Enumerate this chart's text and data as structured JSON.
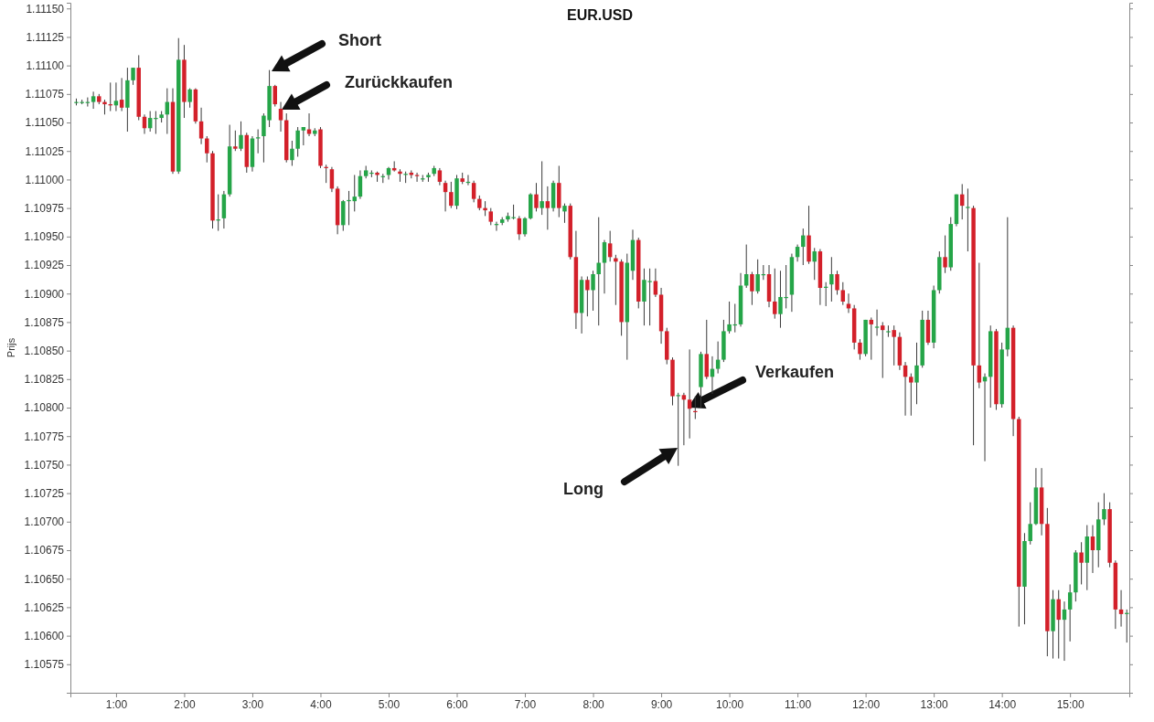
{
  "chart_data": {
    "type": "candlestick",
    "title": "EUR.USD",
    "ylabel": "Prijs",
    "xlim": [
      0.33,
      15.87
    ],
    "ylim": [
      1.1055,
      1.11155
    ],
    "xticks": [
      {
        "value": 1,
        "label": "1:00"
      },
      {
        "value": 2,
        "label": "2:00"
      },
      {
        "value": 3,
        "label": "3:00"
      },
      {
        "value": 4,
        "label": "4:00"
      },
      {
        "value": 5,
        "label": "5:00"
      },
      {
        "value": 6,
        "label": "6:00"
      },
      {
        "value": 7,
        "label": "7:00"
      },
      {
        "value": 8,
        "label": "8:00"
      },
      {
        "value": 9,
        "label": "9:00"
      },
      {
        "value": 10,
        "label": "10:00"
      },
      {
        "value": 11,
        "label": "11:00"
      },
      {
        "value": 12,
        "label": "12:00"
      },
      {
        "value": 13,
        "label": "13:00"
      },
      {
        "value": 14,
        "label": "14:00"
      },
      {
        "value": 15,
        "label": "15:00"
      }
    ],
    "yticks": [
      {
        "value": 1.10575,
        "label": "1.10575"
      },
      {
        "value": 1.106,
        "label": "1.10600"
      },
      {
        "value": 1.10625,
        "label": "1.10625"
      },
      {
        "value": 1.1065,
        "label": "1.10650"
      },
      {
        "value": 1.10675,
        "label": "1.10675"
      },
      {
        "value": 1.107,
        "label": "1.10700"
      },
      {
        "value": 1.10725,
        "label": "1.10725"
      },
      {
        "value": 1.1075,
        "label": "1.10750"
      },
      {
        "value": 1.10775,
        "label": "1.10775"
      },
      {
        "value": 1.108,
        "label": "1.10800"
      },
      {
        "value": 1.10825,
        "label": "1.10825"
      },
      {
        "value": 1.1085,
        "label": "1.10850"
      },
      {
        "value": 1.10875,
        "label": "1.10875"
      },
      {
        "value": 1.109,
        "label": "1.10900"
      },
      {
        "value": 1.10925,
        "label": "1.10925"
      },
      {
        "value": 1.1095,
        "label": "1.10950"
      },
      {
        "value": 1.10975,
        "label": "1.10975"
      },
      {
        "value": 1.11,
        "label": "1.11000"
      },
      {
        "value": 1.11025,
        "label": "1.11025"
      },
      {
        "value": 1.1105,
        "label": "1.11050"
      },
      {
        "value": 1.11075,
        "label": "1.11075"
      },
      {
        "value": 1.111,
        "label": "1.11100"
      },
      {
        "value": 1.11125,
        "label": "1.11125"
      },
      {
        "value": 1.1115,
        "label": "1.11150"
      }
    ],
    "grid": false,
    "annotations": [
      "Short",
      "Zurückkaufen",
      "Verkaufen",
      "Long"
    ],
    "x": [
      0.417,
      0.5,
      0.583,
      0.667,
      0.75,
      0.833,
      0.917,
      1.0,
      1.083,
      1.167,
      1.25,
      1.333,
      1.417,
      1.5,
      1.583,
      1.667,
      1.75,
      1.833,
      1.917,
      2.0,
      2.083,
      2.167,
      2.25,
      2.333,
      2.417,
      2.5,
      2.583,
      2.667,
      2.75,
      2.833,
      2.917,
      3.0,
      3.083,
      3.167,
      3.25,
      3.333,
      3.417,
      3.5,
      3.583,
      3.667,
      3.75,
      3.833,
      3.917,
      4.0,
      4.083,
      4.167,
      4.25,
      4.333,
      4.417,
      4.5,
      4.583,
      4.667,
      4.75,
      4.833,
      4.917,
      5.0,
      5.083,
      5.167,
      5.25,
      5.333,
      5.417,
      5.5,
      5.583,
      5.667,
      5.75,
      5.833,
      5.917,
      6.0,
      6.083,
      6.167,
      6.25,
      6.333,
      6.417,
      6.5,
      6.583,
      6.667,
      6.75,
      6.833,
      6.917,
      7.0,
      7.083,
      7.167,
      7.25,
      7.333,
      7.417,
      7.5,
      7.583,
      7.667,
      7.75,
      7.833,
      7.917,
      8.0,
      8.083,
      8.167,
      8.25,
      8.333,
      8.417,
      8.5,
      8.583,
      8.667,
      8.75,
      8.833,
      8.917,
      9.0,
      9.083,
      9.167,
      9.25,
      9.333,
      9.417,
      9.5,
      9.583,
      9.667,
      9.75,
      9.833,
      9.917,
      10.0,
      10.083,
      10.167,
      10.25,
      10.333,
      10.417,
      10.5,
      10.583,
      10.667,
      10.75,
      10.833,
      10.917,
      11.0,
      11.083,
      11.167,
      11.25,
      11.333,
      11.417,
      11.5,
      11.583,
      11.667,
      11.75,
      11.833,
      11.917,
      12.0,
      12.083,
      12.167,
      12.25,
      12.333,
      12.417,
      12.5,
      12.583,
      12.667,
      12.75,
      12.833,
      12.917,
      13.0,
      13.083,
      13.167,
      13.25,
      13.333,
      13.417,
      13.5,
      13.583,
      13.667,
      13.75,
      13.833,
      13.917,
      14.0,
      14.083,
      14.167,
      14.25,
      14.333,
      14.417,
      14.5,
      14.583,
      14.667,
      14.75,
      14.833,
      14.917,
      15.0,
      15.083,
      15.167,
      15.25,
      15.333,
      15.417,
      15.5,
      15.583,
      15.667,
      15.75,
      15.833
    ],
    "ohlc": [
      [
        1.11068,
        1.11071,
        1.11065,
        1.11068
      ],
      [
        1.11068,
        1.1107,
        1.11066,
        1.11068
      ],
      [
        1.11068,
        1.11072,
        1.11064,
        1.11068
      ],
      [
        1.11068,
        1.11077,
        1.11062,
        1.11073
      ],
      [
        1.11073,
        1.11075,
        1.11066,
        1.11068
      ],
      [
        1.11068,
        1.1107,
        1.11057,
        1.11066
      ],
      [
        1.11066,
        1.11085,
        1.1106,
        1.11065
      ],
      [
        1.11065,
        1.11085,
        1.1106,
        1.11069
      ],
      [
        1.1107,
        1.11089,
        1.1106,
        1.11063
      ],
      [
        1.11063,
        1.11098,
        1.11042,
        1.11087
      ],
      [
        1.11087,
        1.11098,
        1.11083,
        1.11098
      ],
      [
        1.11098,
        1.11109,
        1.11052,
        1.11055
      ],
      [
        1.11055,
        1.11057,
        1.1104,
        1.11045
      ],
      [
        1.11045,
        1.1106,
        1.11042,
        1.11054
      ],
      [
        1.11054,
        1.1106,
        1.1104,
        1.11054
      ],
      [
        1.11054,
        1.1106,
        1.1105,
        1.11057
      ],
      [
        1.11057,
        1.1108,
        1.1104,
        1.11068
      ],
      [
        1.11068,
        1.1108,
        1.11005,
        1.11007
      ],
      [
        1.11007,
        1.11124,
        1.11005,
        1.11105
      ],
      [
        1.11105,
        1.11118,
        1.11054,
        1.11068
      ],
      [
        1.11068,
        1.1108,
        1.11063,
        1.11079
      ],
      [
        1.11079,
        1.1108,
        1.11049,
        1.11051
      ],
      [
        1.11051,
        1.11063,
        1.11031,
        1.11036
      ],
      [
        1.11036,
        1.11038,
        1.11015,
        1.11023
      ],
      [
        1.11023,
        1.11025,
        1.10957,
        1.10964
      ],
      [
        1.10964,
        1.10987,
        1.10955,
        1.10965
      ],
      [
        1.10966,
        1.1099,
        1.10957,
        1.10987
      ],
      [
        1.10987,
        1.11048,
        1.10985,
        1.11029
      ],
      [
        1.11029,
        1.11043,
        1.11025,
        1.11027
      ],
      [
        1.11027,
        1.11051,
        1.11025,
        1.11039
      ],
      [
        1.11039,
        1.11041,
        1.11006,
        1.11011
      ],
      [
        1.11011,
        1.11038,
        1.11007,
        1.11036
      ],
      [
        1.11036,
        1.11044,
        1.11023,
        1.11037
      ],
      [
        1.11038,
        1.11058,
        1.11015,
        1.11056
      ],
      [
        1.11052,
        1.11096,
        1.11046,
        1.11082
      ],
      [
        1.11082,
        1.11083,
        1.11064,
        1.11066
      ],
      [
        1.11062,
        1.11068,
        1.11042,
        1.11052
      ],
      [
        1.11052,
        1.11058,
        1.11015,
        1.11017
      ],
      [
        1.11017,
        1.11034,
        1.11012,
        1.11027
      ],
      [
        1.11027,
        1.11046,
        1.1102,
        1.11043
      ],
      [
        1.11043,
        1.11046,
        1.1103,
        1.11046
      ],
      [
        1.11044,
        1.11058,
        1.11038,
        1.1104
      ],
      [
        1.1104,
        1.11045,
        1.11038,
        1.11043
      ],
      [
        1.11044,
        1.11046,
        1.1101,
        1.11012
      ],
      [
        1.11011,
        1.11013,
        1.10997,
        1.1101
      ],
      [
        1.11009,
        1.11011,
        1.10989,
        1.10992
      ],
      [
        1.10992,
        1.10994,
        1.10952,
        1.1096
      ],
      [
        1.1096,
        1.10982,
        1.10955,
        1.10981
      ],
      [
        1.10981,
        1.1099,
        1.1096,
        1.10982
      ],
      [
        1.10981,
        1.11004,
        1.10972,
        1.10985
      ],
      [
        1.10985,
        1.11008,
        1.10983,
        1.11003
      ],
      [
        1.11003,
        1.11012,
        1.11001,
        1.11008
      ],
      [
        1.11006,
        1.11008,
        1.11002,
        1.11006
      ],
      [
        1.11006,
        1.11007,
        1.10998,
        1.11004
      ],
      [
        1.11003,
        1.11005,
        1.10997,
        1.11003
      ],
      [
        1.11004,
        1.11011,
        1.11,
        1.1101
      ],
      [
        1.1101,
        1.11016,
        1.11007,
        1.11008
      ],
      [
        1.11007,
        1.11009,
        1.10998,
        1.11005
      ],
      [
        1.11005,
        1.11007,
        1.10997,
        1.11005
      ],
      [
        1.11006,
        1.11008,
        1.11001,
        1.11004
      ],
      [
        1.11004,
        1.11006,
        1.10998,
        1.11003
      ],
      [
        1.11001,
        1.11004,
        1.10998,
        1.11001
      ],
      [
        1.11002,
        1.11006,
        1.10998,
        1.11004
      ],
      [
        1.11005,
        1.11012,
        1.11003,
        1.1101
      ],
      [
        1.11008,
        1.1101,
        1.10995,
        1.10998
      ],
      [
        1.10997,
        1.10999,
        1.10972,
        1.10989
      ],
      [
        1.10989,
        1.10998,
        1.10975,
        1.10977
      ],
      [
        1.10977,
        1.11004,
        1.10974,
        1.11001
      ],
      [
        1.11001,
        1.11006,
        1.10996,
        1.10998
      ],
      [
        1.10998,
        1.11004,
        1.10995,
        1.10998
      ],
      [
        1.10997,
        1.10999,
        1.1098,
        1.10983
      ],
      [
        1.10983,
        1.10986,
        1.10973,
        1.10975
      ],
      [
        1.10975,
        1.10981,
        1.10968,
        1.10973
      ],
      [
        1.10972,
        1.10975,
        1.1096,
        1.10963
      ],
      [
        1.10961,
        1.10963,
        1.10955,
        1.10961
      ],
      [
        1.10962,
        1.10967,
        1.1096,
        1.10965
      ],
      [
        1.10965,
        1.10971,
        1.10963,
        1.10968
      ],
      [
        1.10967,
        1.10978,
        1.10965,
        1.10967
      ],
      [
        1.10966,
        1.10968,
        1.10947,
        1.10952
      ],
      [
        1.10952,
        1.10967,
        1.1095,
        1.10966
      ],
      [
        1.10966,
        1.10988,
        1.10965,
        1.10987
      ],
      [
        1.10987,
        1.10997,
        1.10972,
        1.10975
      ],
      [
        1.10975,
        1.11016,
        1.10969,
        1.10981
      ],
      [
        1.10981,
        1.10994,
        1.10956,
        1.10975
      ],
      [
        1.10975,
        1.10999,
        1.10972,
        1.10997
      ],
      [
        1.10997,
        1.11012,
        1.10967,
        1.10975
      ],
      [
        1.10972,
        1.10979,
        1.10962,
        1.10977
      ],
      [
        1.10977,
        1.10979,
        1.1093,
        1.10932
      ],
      [
        1.10932,
        1.10955,
        1.10869,
        1.10883
      ],
      [
        1.10883,
        1.10915,
        1.10865,
        1.10912
      ],
      [
        1.10912,
        1.10915,
        1.1088,
        1.10903
      ],
      [
        1.10903,
        1.1092,
        1.10885,
        1.10917
      ],
      [
        1.10917,
        1.10967,
        1.10872,
        1.10927
      ],
      [
        1.10927,
        1.10947,
        1.109,
        1.10945
      ],
      [
        1.10944,
        1.10955,
        1.10928,
        1.10932
      ],
      [
        1.10931,
        1.10934,
        1.1089,
        1.10928
      ],
      [
        1.10928,
        1.1093,
        1.10863,
        1.10875
      ],
      [
        1.10875,
        1.10935,
        1.10842,
        1.10927
      ],
      [
        1.1092,
        1.10956,
        1.10912,
        1.10947
      ],
      [
        1.10947,
        1.10949,
        1.10887,
        1.10893
      ],
      [
        1.10893,
        1.10922,
        1.10872,
        1.10912
      ],
      [
        1.10911,
        1.10922,
        1.10872,
        1.10911
      ],
      [
        1.10911,
        1.10922,
        1.10897,
        1.10899
      ],
      [
        1.10899,
        1.10905,
        1.10856,
        1.10867
      ],
      [
        1.10867,
        1.1087,
        1.10838,
        1.10842
      ],
      [
        1.10842,
        1.10844,
        1.10802,
        1.1081
      ],
      [
        1.10811,
        1.10813,
        1.10749,
        1.10811
      ],
      [
        1.10811,
        1.10813,
        1.10767,
        1.10807
      ],
      [
        1.10807,
        1.10851,
        1.10773,
        1.10799
      ],
      [
        1.10797,
        1.1081,
        1.1079,
        1.10796
      ],
      [
        1.10818,
        1.10849,
        1.108,
        1.10847
      ],
      [
        1.10847,
        1.10877,
        1.10825,
        1.10827
      ],
      [
        1.10827,
        1.10845,
        1.10812,
        1.10834
      ],
      [
        1.10834,
        1.10858,
        1.1083,
        1.10842
      ],
      [
        1.10842,
        1.10877,
        1.1084,
        1.10867
      ],
      [
        1.10867,
        1.10893,
        1.10865,
        1.10873
      ],
      [
        1.10873,
        1.10891,
        1.10866,
        1.10873
      ],
      [
        1.10873,
        1.10918,
        1.10871,
        1.10907
      ],
      [
        1.10907,
        1.10943,
        1.10905,
        1.10917
      ],
      [
        1.10917,
        1.10919,
        1.1089,
        1.10902
      ],
      [
        1.10902,
        1.1093,
        1.109,
        1.10917
      ],
      [
        1.10917,
        1.10925,
        1.10912,
        1.10917
      ],
      [
        1.10917,
        1.10925,
        1.10888,
        1.10893
      ],
      [
        1.10893,
        1.10922,
        1.10878,
        1.10882
      ],
      [
        1.10882,
        1.1092,
        1.1087,
        1.10897
      ],
      [
        1.10897,
        1.10925,
        1.10887,
        1.10897
      ],
      [
        1.10899,
        1.10935,
        1.10884,
        1.10932
      ],
      [
        1.10932,
        1.10943,
        1.10928,
        1.10941
      ],
      [
        1.10941,
        1.10957,
        1.10925,
        1.10951
      ],
      [
        1.10951,
        1.10977,
        1.10926,
        1.10928
      ],
      [
        1.10928,
        1.1094,
        1.10912,
        1.10937
      ],
      [
        1.10937,
        1.10939,
        1.1089,
        1.10905
      ],
      [
        1.10906,
        1.1091,
        1.10889,
        1.10906
      ],
      [
        1.10908,
        1.10932,
        1.10893,
        1.10917
      ],
      [
        1.10917,
        1.1092,
        1.10899,
        1.10903
      ],
      [
        1.10903,
        1.1091,
        1.1089,
        1.10893
      ],
      [
        1.10891,
        1.109,
        1.10883,
        1.10887
      ],
      [
        1.10887,
        1.1089,
        1.10851,
        1.10857
      ],
      [
        1.10857,
        1.1086,
        1.10842,
        1.10847
      ],
      [
        1.10847,
        1.10877,
        1.10845,
        1.10877
      ],
      [
        1.10877,
        1.10879,
        1.10842,
        1.10873
      ],
      [
        1.10871,
        1.10886,
        1.10863,
        1.10871
      ],
      [
        1.10872,
        1.10875,
        1.10826,
        1.10868
      ],
      [
        1.10867,
        1.10872,
        1.10862,
        1.10867
      ],
      [
        1.10868,
        1.10872,
        1.10837,
        1.10862
      ],
      [
        1.10862,
        1.10866,
        1.10833,
        1.10837
      ],
      [
        1.10837,
        1.1084,
        1.10793,
        1.10827
      ],
      [
        1.10827,
        1.1083,
        1.10793,
        1.10822
      ],
      [
        1.10822,
        1.10857,
        1.10803,
        1.10837
      ],
      [
        1.10837,
        1.10885,
        1.10835,
        1.10877
      ],
      [
        1.10877,
        1.10885,
        1.10855,
        1.10857
      ],
      [
        1.10857,
        1.10907,
        1.10852,
        1.10903
      ],
      [
        1.10903,
        1.10937,
        1.109,
        1.10932
      ],
      [
        1.10932,
        1.10951,
        1.10918,
        1.10923
      ],
      [
        1.10923,
        1.10967,
        1.1092,
        1.10961
      ],
      [
        1.10961,
        1.10987,
        1.10959,
        1.10987
      ],
      [
        1.10987,
        1.10996,
        1.10965,
        1.10977
      ],
      [
        1.10976,
        1.10992,
        1.10937,
        1.10976
      ],
      [
        1.10975,
        1.10977,
        1.10767,
        1.10837
      ],
      [
        1.10837,
        1.10927,
        1.10817,
        1.10822
      ],
      [
        1.10823,
        1.1083,
        1.10753,
        1.10827
      ],
      [
        1.10827,
        1.10872,
        1.108,
        1.10867
      ],
      [
        1.10867,
        1.10869,
        1.10798,
        1.10803
      ],
      [
        1.10803,
        1.10857,
        1.108,
        1.10851
      ],
      [
        1.10851,
        1.10967,
        1.10845,
        1.1087
      ],
      [
        1.1087,
        1.10872,
        1.10775,
        1.1079
      ],
      [
        1.1079,
        1.10792,
        1.10608,
        1.10643
      ],
      [
        1.10643,
        1.1069,
        1.1061,
        1.10683
      ],
      [
        1.10683,
        1.10717,
        1.1068,
        1.10698
      ],
      [
        1.10698,
        1.10747,
        1.10697,
        1.1073
      ],
      [
        1.1073,
        1.10747,
        1.10688,
        1.10698
      ],
      [
        1.10698,
        1.10712,
        1.10582,
        1.10604
      ],
      [
        1.10604,
        1.1064,
        1.1058,
        1.10632
      ],
      [
        1.10632,
        1.1064,
        1.1058,
        1.10614
      ],
      [
        1.10614,
        1.1063,
        1.10578,
        1.10623
      ],
      [
        1.10623,
        1.10645,
        1.10595,
        1.10638
      ],
      [
        1.10638,
        1.10675,
        1.1063,
        1.10673
      ],
      [
        1.10673,
        1.10682,
        1.10645,
        1.10664
      ],
      [
        1.10664,
        1.10697,
        1.1064,
        1.10687
      ],
      [
        1.10687,
        1.10697,
        1.10655,
        1.10675
      ],
      [
        1.10675,
        1.10717,
        1.1066,
        1.10702
      ],
      [
        1.10702,
        1.10725,
        1.10697,
        1.10711
      ],
      [
        1.10711,
        1.10717,
        1.1066,
        1.10664
      ],
      [
        1.10664,
        1.10666,
        1.10606,
        1.10623
      ],
      [
        1.10623,
        1.1064,
        1.10608,
        1.10619
      ],
      [
        1.10619,
        1.10623,
        1.10594,
        1.1062
      ]
    ]
  }
}
